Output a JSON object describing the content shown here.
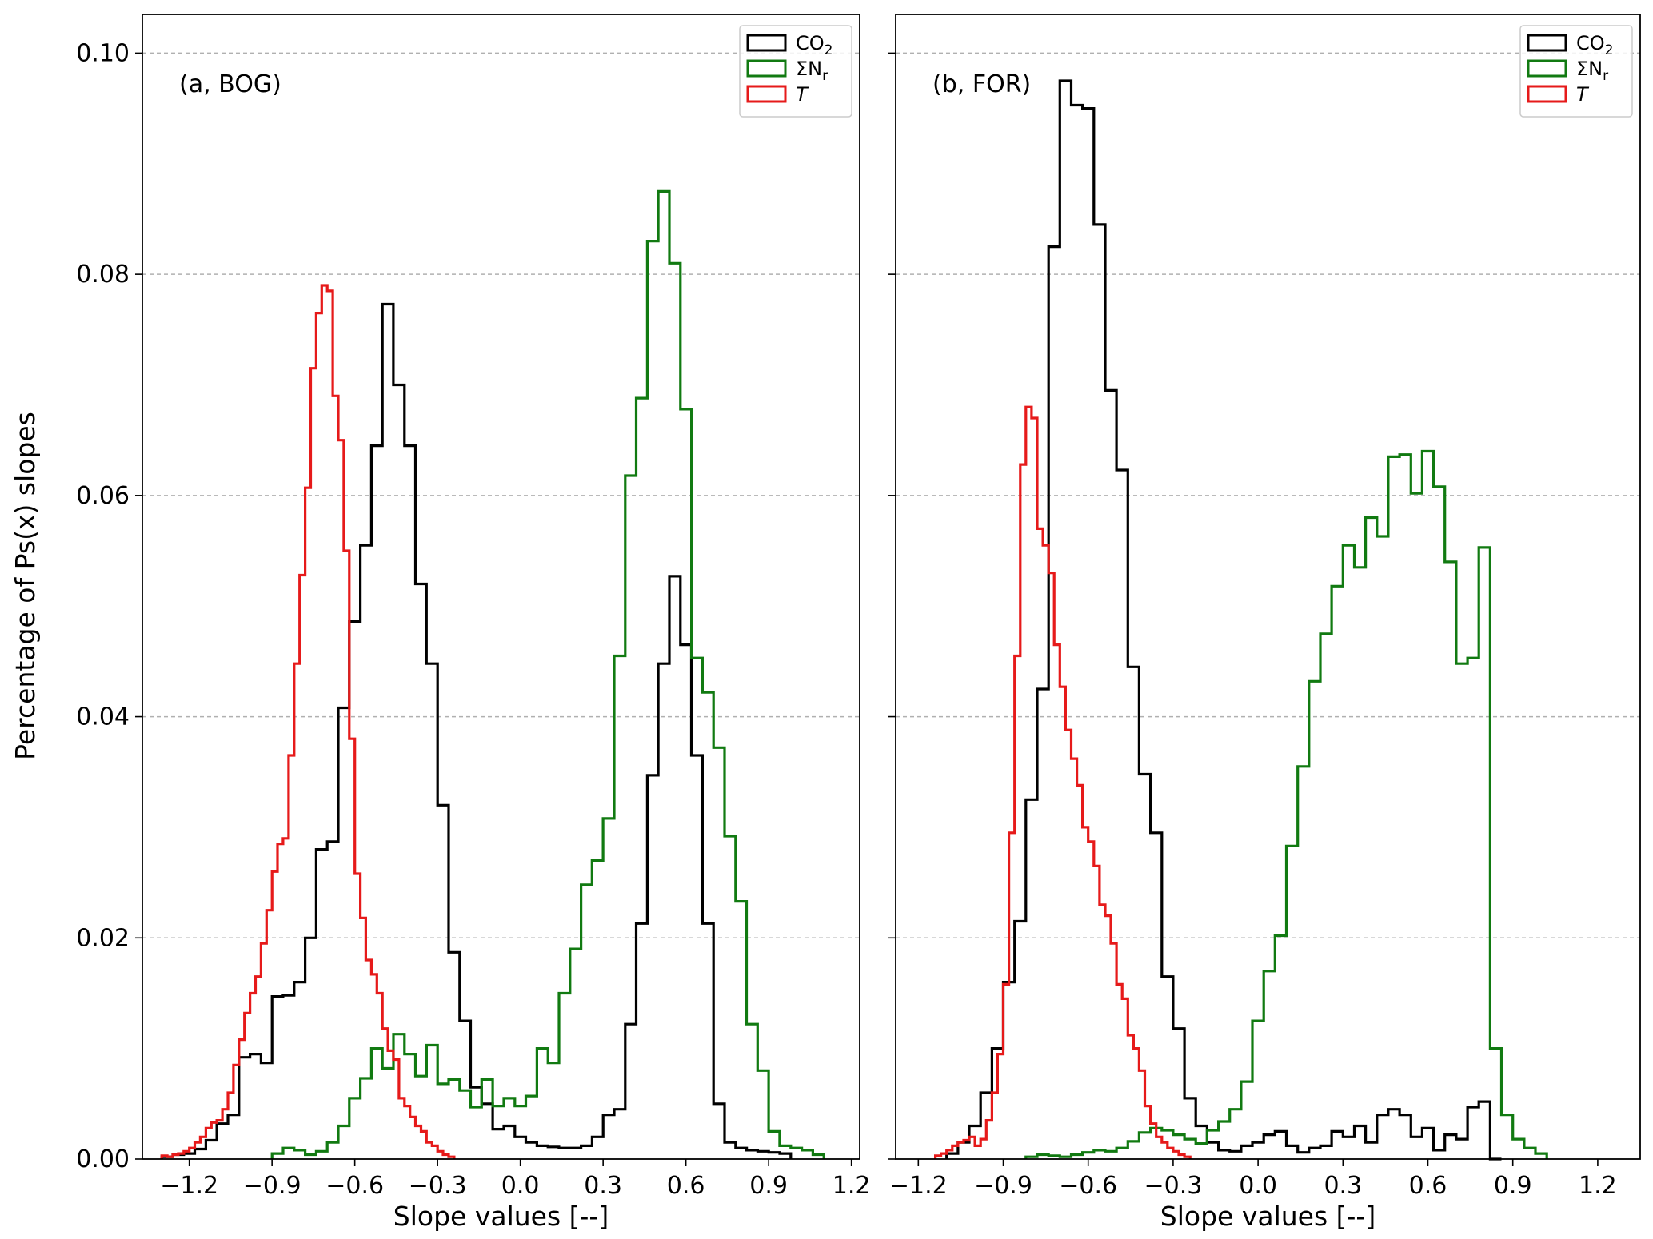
{
  "figure": {
    "ylabel": "Percentage of Ps(x) slopes"
  },
  "chart_data": [
    {
      "type": "histogram-step",
      "annotation": "(a, BOG)",
      "xlabel": "Slope values [--]",
      "ylabel": "Percentage of Ps(x) slopes",
      "xlim": [
        -1.37,
        1.23
      ],
      "ylim": [
        0,
        0.1035
      ],
      "xticks": [
        -1.2,
        -0.9,
        -0.6,
        -0.3,
        0.0,
        0.3,
        0.6,
        0.9,
        1.2
      ],
      "xtick_labels": [
        "−1.2",
        "−0.9",
        "−0.6",
        "−0.3",
        "0.0",
        "0.3",
        "0.6",
        "0.9",
        "1.2"
      ],
      "yticks": [
        0.0,
        0.02,
        0.04,
        0.06,
        0.08,
        0.1
      ],
      "ytick_labels": [
        "0.00",
        "0.02",
        "0.04",
        "0.06",
        "0.08",
        "0.10"
      ],
      "show_ytick_labels": true,
      "grid": "horizontal-dashed",
      "legend": "top-right",
      "series": [
        {
          "name": "CO2",
          "label_main": "CO",
          "label_sub": "2",
          "italic": false,
          "color": "#000000",
          "start": -1.3,
          "step": 0.04,
          "values": [
            0.0002,
            0.0004,
            0.0005,
            0.0009,
            0.0017,
            0.0032,
            0.004,
            0.0092,
            0.0095,
            0.0087,
            0.0147,
            0.0148,
            0.016,
            0.02,
            0.028,
            0.0287,
            0.0408,
            0.0486,
            0.0555,
            0.0645,
            0.0773,
            0.07,
            0.0645,
            0.052,
            0.0448,
            0.032,
            0.0187,
            0.0125,
            0.0065,
            0.005,
            0.0027,
            0.003,
            0.002,
            0.0015,
            0.0012,
            0.0011,
            0.001,
            0.001,
            0.0012,
            0.002,
            0.004,
            0.0045,
            0.0122,
            0.0213,
            0.0347,
            0.0448,
            0.0527,
            0.0465,
            0.0365,
            0.0213,
            0.005,
            0.0015,
            0.001,
            0.0008,
            0.0007,
            0.0006,
            0.0005
          ]
        },
        {
          "name": "ΣNr",
          "label_main": "ΣN",
          "label_sub": "r",
          "italic": false,
          "color": "#117a11",
          "start": -0.9,
          "step": 0.04,
          "values": [
            0.0005,
            0.001,
            0.0008,
            0.0004,
            0.0007,
            0.0015,
            0.003,
            0.0055,
            0.0073,
            0.01,
            0.0082,
            0.0113,
            0.0095,
            0.0075,
            0.0103,
            0.0068,
            0.0072,
            0.0062,
            0.0047,
            0.0072,
            0.0048,
            0.0055,
            0.0048,
            0.0057,
            0.01,
            0.0087,
            0.015,
            0.019,
            0.0248,
            0.027,
            0.0308,
            0.0455,
            0.0618,
            0.0688,
            0.083,
            0.0875,
            0.081,
            0.0678,
            0.0453,
            0.0422,
            0.0372,
            0.0292,
            0.0233,
            0.0122,
            0.008,
            0.0025,
            0.0012,
            0.001,
            0.0008,
            0.0004
          ]
        },
        {
          "name": "T",
          "label_main": "T",
          "label_sub": "",
          "italic": true,
          "color": "#e61a1a",
          "start": -1.3,
          "step": 0.02,
          "values": [
            0.0003,
            0.0002,
            0.0004,
            0.0005,
            0.0007,
            0.001,
            0.0015,
            0.002,
            0.0028,
            0.0033,
            0.0035,
            0.0045,
            0.006,
            0.0085,
            0.0108,
            0.0132,
            0.015,
            0.0165,
            0.0195,
            0.0225,
            0.026,
            0.0285,
            0.029,
            0.0365,
            0.0448,
            0.0528,
            0.0607,
            0.0715,
            0.0765,
            0.079,
            0.0785,
            0.069,
            0.065,
            0.055,
            0.038,
            0.0258,
            0.0218,
            0.018,
            0.0167,
            0.015,
            0.0118,
            0.0098,
            0.009,
            0.0055,
            0.0048,
            0.0038,
            0.003,
            0.0025,
            0.0015,
            0.0012,
            0.0007,
            0.0004,
            0.0002
          ]
        }
      ]
    },
    {
      "type": "histogram-step",
      "annotation": "(b, FOR)",
      "xlabel": "Slope values [--]",
      "ylabel": "",
      "xlim": [
        -1.28,
        1.35
      ],
      "ylim": [
        0,
        0.1035
      ],
      "xticks": [
        -1.2,
        -0.9,
        -0.6,
        -0.3,
        0.0,
        0.3,
        0.6,
        0.9,
        1.2
      ],
      "xtick_labels": [
        "−1.2",
        "−0.9",
        "−0.6",
        "−0.3",
        "0.0",
        "0.3",
        "0.6",
        "0.9",
        "1.2"
      ],
      "yticks": [
        0.0,
        0.02,
        0.04,
        0.06,
        0.08,
        0.1
      ],
      "ytick_labels": [
        "0.00",
        "0.02",
        "0.04",
        "0.06",
        "0.08",
        "0.10"
      ],
      "show_ytick_labels": false,
      "grid": "horizontal-dashed",
      "legend": "top-right",
      "series": [
        {
          "name": "CO2",
          "label_main": "CO",
          "label_sub": "2",
          "italic": false,
          "color": "#000000",
          "start": -1.1,
          "step": 0.04,
          "values": [
            0.0005,
            0.0015,
            0.003,
            0.006,
            0.01,
            0.016,
            0.0215,
            0.0325,
            0.0425,
            0.0825,
            0.0975,
            0.0953,
            0.095,
            0.0845,
            0.0695,
            0.0623,
            0.0445,
            0.0348,
            0.0295,
            0.0165,
            0.0118,
            0.0055,
            0.003,
            0.0015,
            0.0008,
            0.0007,
            0.0012,
            0.0015,
            0.0022,
            0.0025,
            0.0012,
            0.0006,
            0.001,
            0.0012,
            0.0025,
            0.002,
            0.003,
            0.0015,
            0.004,
            0.0045,
            0.004,
            0.002,
            0.0028,
            0.0008,
            0.0022,
            0.0018,
            0.0047,
            0.0052,
            0.0
          ]
        },
        {
          "name": "ΣNr",
          "label_main": "ΣN",
          "label_sub": "r",
          "italic": false,
          "color": "#117a11",
          "start": -0.82,
          "step": 0.04,
          "values": [
            0.0002,
            0.0004,
            0.0003,
            0.0002,
            0.0004,
            0.0006,
            0.0008,
            0.0007,
            0.001,
            0.0016,
            0.0024,
            0.0028,
            0.0026,
            0.0022,
            0.0018,
            0.0014,
            0.0026,
            0.0034,
            0.0045,
            0.007,
            0.0125,
            0.017,
            0.0202,
            0.0283,
            0.0355,
            0.0432,
            0.0475,
            0.0518,
            0.0555,
            0.0535,
            0.058,
            0.0563,
            0.0635,
            0.0637,
            0.0602,
            0.064,
            0.0608,
            0.054,
            0.0448,
            0.0453,
            0.0553,
            0.01,
            0.004,
            0.0018,
            0.001,
            0.0005
          ]
        },
        {
          "name": "T",
          "label_main": "T",
          "label_sub": "",
          "italic": true,
          "color": "#e61a1a",
          "start": -1.14,
          "step": 0.02,
          "values": [
            0.0003,
            0.0005,
            0.0008,
            0.0012,
            0.0015,
            0.0017,
            0.002,
            0.0012,
            0.0018,
            0.0035,
            0.006,
            0.0095,
            0.0158,
            0.0295,
            0.0455,
            0.0628,
            0.068,
            0.067,
            0.057,
            0.0555,
            0.053,
            0.0465,
            0.0427,
            0.0388,
            0.0362,
            0.0338,
            0.03,
            0.0287,
            0.0265,
            0.023,
            0.022,
            0.0195,
            0.0158,
            0.0145,
            0.0112,
            0.01,
            0.008,
            0.0048,
            0.0032,
            0.002,
            0.0015,
            0.001,
            0.0007,
            0.0004,
            0.0002
          ]
        }
      ]
    }
  ]
}
